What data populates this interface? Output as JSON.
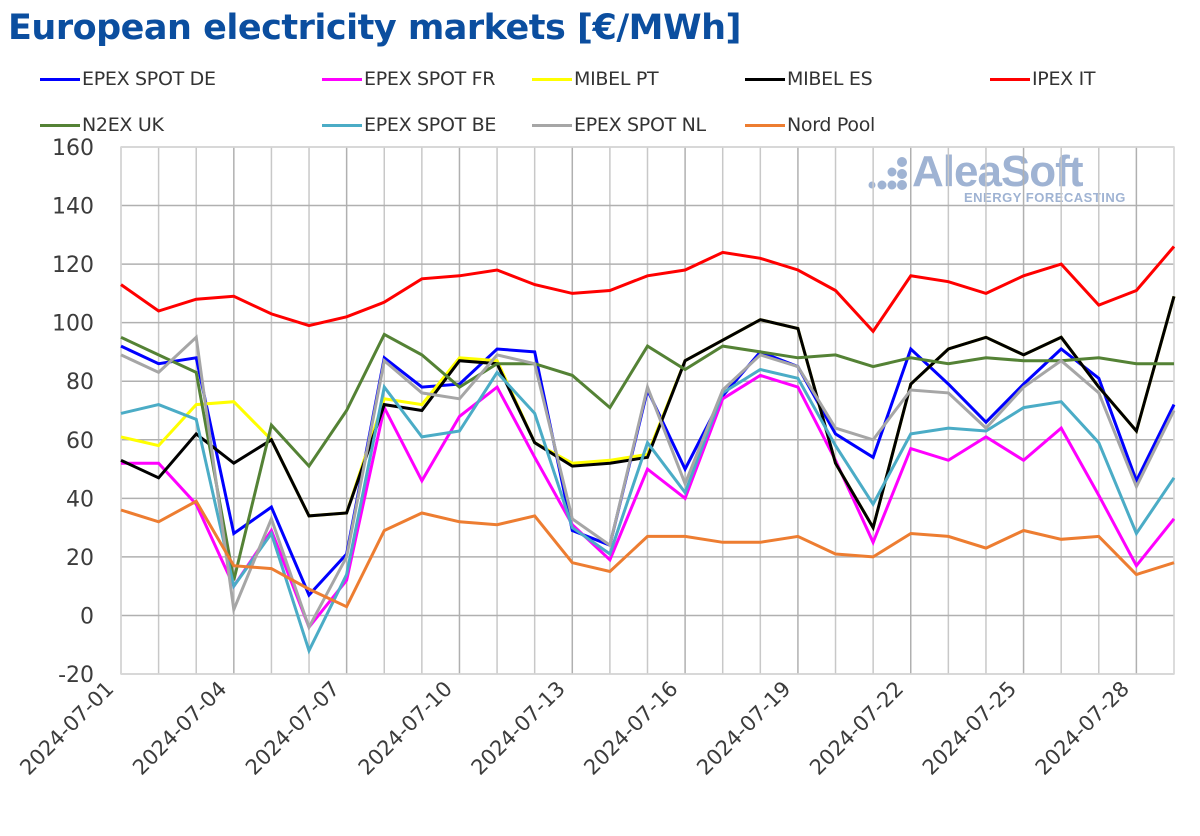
{
  "colors": {
    "title": "#0b4e9f",
    "grid": "#c8c8c8",
    "grid_major": "#b0b0b0",
    "axis_text": "#3c3c3c",
    "watermark": "#9fb3d3"
  },
  "watermark": {
    "brand": "AleaSoft",
    "tagline": "ENERGY FORECASTING"
  },
  "chart_data": {
    "type": "line",
    "title": "European electricity markets [€/MWh]",
    "xlabel": "",
    "ylabel": "",
    "ylim": [
      -20,
      160
    ],
    "yticks": [
      -20,
      0,
      20,
      40,
      60,
      80,
      100,
      120,
      140,
      160
    ],
    "grid": true,
    "legend_position": "top",
    "x": [
      "2024-07-01",
      "2024-07-02",
      "2024-07-03",
      "2024-07-04",
      "2024-07-05",
      "2024-07-06",
      "2024-07-07",
      "2024-07-08",
      "2024-07-09",
      "2024-07-10",
      "2024-07-11",
      "2024-07-12",
      "2024-07-13",
      "2024-07-14",
      "2024-07-15",
      "2024-07-16",
      "2024-07-17",
      "2024-07-18",
      "2024-07-19",
      "2024-07-20",
      "2024-07-21",
      "2024-07-22",
      "2024-07-23",
      "2024-07-24",
      "2024-07-25",
      "2024-07-26",
      "2024-07-27",
      "2024-07-28",
      "2024-07-29"
    ],
    "xtick_labels": [
      "2024-07-01",
      "2024-07-04",
      "2024-07-07",
      "2024-07-10",
      "2024-07-13",
      "2024-07-16",
      "2024-07-19",
      "2024-07-22",
      "2024-07-25",
      "2024-07-28"
    ],
    "series": [
      {
        "name": "EPEX SPOT DE",
        "color": "#0000ff",
        "values": [
          92,
          86,
          88,
          28,
          37,
          7,
          21,
          88,
          78,
          79,
          91,
          90,
          29,
          24,
          77,
          50,
          75,
          90,
          85,
          62,
          54,
          91,
          79,
          66,
          79,
          91,
          81,
          46,
          72
        ]
      },
      {
        "name": "EPEX SPOT FR",
        "color": "#ff00ff",
        "values": [
          52,
          52,
          38,
          10,
          29,
          -4,
          12,
          71,
          46,
          68,
          78,
          54,
          31,
          19,
          50,
          40,
          74,
          82,
          78,
          53,
          25,
          57,
          53,
          61,
          53,
          64,
          41,
          17,
          33
        ]
      },
      {
        "name": "MIBEL PT",
        "color": "#ffff00",
        "values": [
          61,
          58,
          72,
          73,
          60,
          34,
          35,
          74,
          72,
          88,
          87,
          59,
          52,
          53,
          55,
          87,
          94,
          101,
          98,
          52,
          30,
          79,
          91,
          95,
          89,
          95,
          78,
          63,
          109
        ]
      },
      {
        "name": "MIBEL ES",
        "color": "#000000",
        "values": [
          53,
          47,
          62,
          52,
          60,
          34,
          35,
          72,
          70,
          87,
          86,
          59,
          51,
          52,
          54,
          87,
          94,
          101,
          98,
          52,
          30,
          79,
          91,
          95,
          89,
          95,
          78,
          63,
          109
        ]
      },
      {
        "name": "IPEX IT",
        "color": "#ff0000",
        "values": [
          113,
          104,
          108,
          109,
          103,
          99,
          102,
          107,
          115,
          116,
          118,
          113,
          110,
          111,
          116,
          118,
          124,
          122,
          118,
          111,
          97,
          116,
          114,
          110,
          116,
          120,
          106,
          111,
          126
        ]
      },
      {
        "name": "N2EX UK",
        "color": "#548235",
        "values": [
          95,
          89,
          83,
          12,
          65,
          51,
          70,
          96,
          89,
          78,
          86,
          86,
          82,
          71,
          92,
          84,
          92,
          90,
          88,
          89,
          85,
          88,
          86,
          88,
          87,
          87,
          88,
          86,
          86
        ]
      },
      {
        "name": "EPEX SPOT BE",
        "color": "#4bacc6",
        "values": [
          69,
          72,
          67,
          10,
          28,
          -12,
          14,
          78,
          61,
          63,
          83,
          69,
          30,
          21,
          59,
          42,
          76,
          84,
          81,
          58,
          38,
          62,
          64,
          63,
          71,
          73,
          59,
          28,
          47
        ]
      },
      {
        "name": "EPEX SPOT NL",
        "color": "#a6a6a6",
        "values": [
          89,
          83,
          95,
          2,
          33,
          -4,
          20,
          87,
          76,
          74,
          89,
          86,
          33,
          24,
          78,
          45,
          77,
          89,
          85,
          64,
          60,
          77,
          76,
          64,
          78,
          87,
          76,
          44,
          70
        ]
      },
      {
        "name": "Nord Pool",
        "color": "#ed7d31",
        "values": [
          36,
          32,
          39,
          17,
          16,
          9,
          3,
          29,
          35,
          32,
          31,
          34,
          18,
          15,
          27,
          27,
          25,
          25,
          27,
          21,
          20,
          28,
          27,
          23,
          29,
          26,
          27,
          14,
          18
        ]
      }
    ]
  }
}
